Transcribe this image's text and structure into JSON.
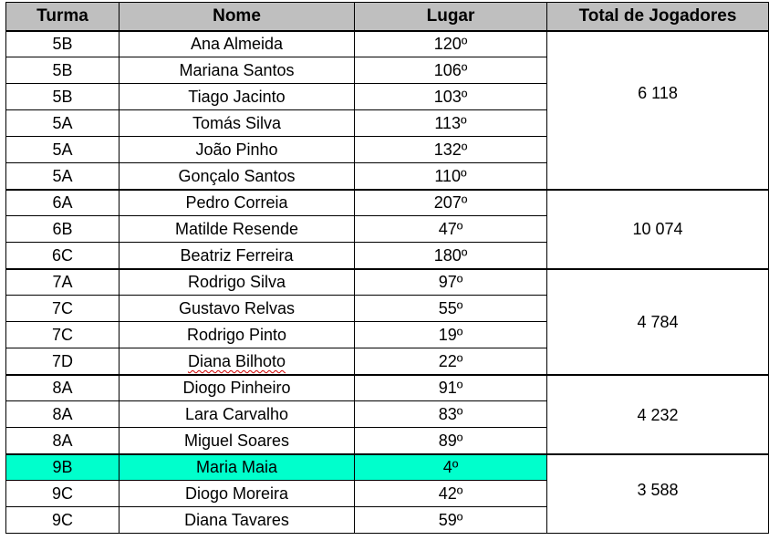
{
  "table": {
    "headers": {
      "turma": "Turma",
      "nome": "Nome",
      "lugar": "Lugar",
      "total": "Total de Jogadores"
    },
    "rows": [
      {
        "turma": "5B",
        "nome": "Ana Almeida",
        "lugar": "120º"
      },
      {
        "turma": "5B",
        "nome": "Mariana Santos",
        "lugar": "106º"
      },
      {
        "turma": "5B",
        "nome": "Tiago Jacinto",
        "lugar": "103º"
      },
      {
        "turma": "5A",
        "nome": "Tomás Silva",
        "lugar": "113º"
      },
      {
        "turma": "5A",
        "nome": "João Pinho",
        "lugar": "132º"
      },
      {
        "turma": "5A",
        "nome": "Gonçalo Santos",
        "lugar": "110º"
      },
      {
        "turma": "6A",
        "nome": "Pedro Correia",
        "lugar": "207º"
      },
      {
        "turma": "6B",
        "nome": "Matilde Resende",
        "lugar": "47º"
      },
      {
        "turma": "6C",
        "nome": "Beatriz Ferreira",
        "lugar": "180º"
      },
      {
        "turma": "7A",
        "nome": "Rodrigo Silva",
        "lugar": "97º"
      },
      {
        "turma": "7C",
        "nome": "Gustavo Relvas",
        "lugar": "55º"
      },
      {
        "turma": "7C",
        "nome": "Rodrigo Pinto",
        "lugar": "19º"
      },
      {
        "turma": "7D",
        "nome": "Diana Bilhoto",
        "lugar": "22º"
      },
      {
        "turma": "8A",
        "nome": "Diogo Pinheiro",
        "lugar": "91º"
      },
      {
        "turma": "8A",
        "nome": "Lara Carvalho",
        "lugar": "83º"
      },
      {
        "turma": "8A",
        "nome": "Miguel Soares",
        "lugar": "89º"
      },
      {
        "turma": "9B",
        "nome": "Maria Maia",
        "lugar": "4º"
      },
      {
        "turma": "9C",
        "nome": "Diogo Moreira",
        "lugar": "42º"
      },
      {
        "turma": "9C",
        "nome": "Diana Tavares",
        "lugar": "59º"
      }
    ],
    "totals": {
      "ano5": "6 118",
      "ano6": "10 074",
      "ano7": "4 784",
      "ano8": "4 232",
      "ano9": "3 588"
    },
    "highlight_color": "#00ffcc",
    "header_color": "#bfbfbf"
  }
}
